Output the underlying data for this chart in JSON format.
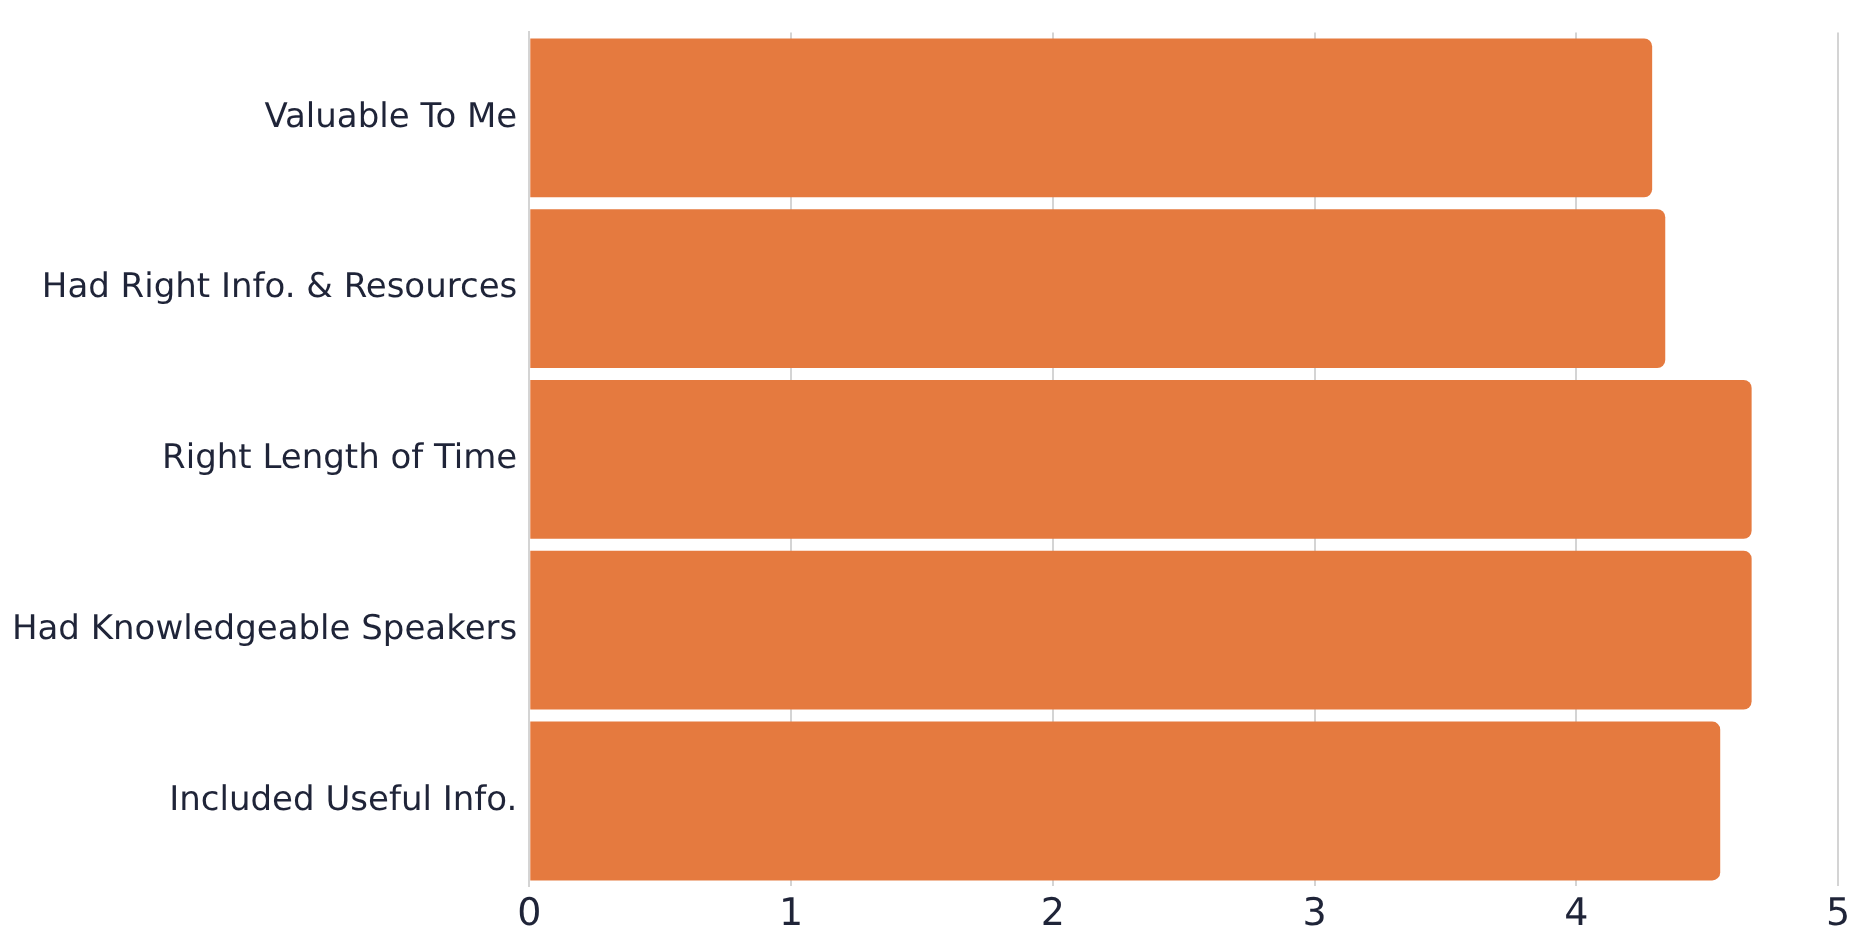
{
  "chart_data": {
    "type": "bar",
    "orientation": "horizontal",
    "categories": [
      "Valuable To Me",
      "Had Right Info. & Resources",
      "Right Length of Time",
      "Had Knowledgeable Speakers",
      "Included Useful Info."
    ],
    "values": [
      4.29,
      4.34,
      4.67,
      4.67,
      4.55
    ],
    "color": "#e57a3f",
    "xlim": [
      0,
      5
    ],
    "xticks": [
      0,
      1,
      2,
      3,
      4,
      5
    ],
    "grid": "x",
    "legend": false
  }
}
